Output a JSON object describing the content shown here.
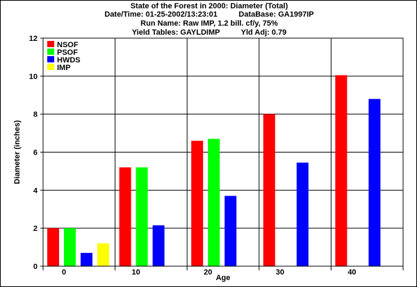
{
  "header": {
    "line1": "State of the Forest in 2000: Diameter (Total)",
    "line2_left": "Date/Time: 01-25-2002/13:23:01",
    "line2_right": "DataBase: GA1997IP",
    "line3": "Run Name: Raw IMP, 1.2 bill. cf/y, 75%",
    "line4_left": "Yield Tables: GAYLDIMP",
    "line4_right": "Yld Adj: 0.79"
  },
  "chart_data": {
    "type": "bar",
    "title": "State of the Forest in 2000: Diameter (Total)",
    "xlabel": "Age",
    "ylabel": "Diameter (inches)",
    "categories": [
      "0",
      "10",
      "20",
      "30",
      "40"
    ],
    "ylim": [
      0,
      12
    ],
    "yticks": [
      0,
      2,
      4,
      6,
      8,
      10,
      12
    ],
    "grid": true,
    "legend_position": "top-left",
    "series": [
      {
        "name": "NSOF",
        "color": "#ff0000",
        "values": [
          2.0,
          5.2,
          6.6,
          8.0,
          10.05
        ]
      },
      {
        "name": "PSOF",
        "color": "#00ff00",
        "values": [
          2.0,
          5.2,
          6.7,
          null,
          null
        ]
      },
      {
        "name": "HWDS",
        "color": "#0000ff",
        "values": [
          0.7,
          2.15,
          3.7,
          5.45,
          8.8
        ]
      },
      {
        "name": "IMP",
        "color": "#ffff00",
        "values": [
          1.2,
          null,
          null,
          null,
          null
        ]
      }
    ]
  }
}
